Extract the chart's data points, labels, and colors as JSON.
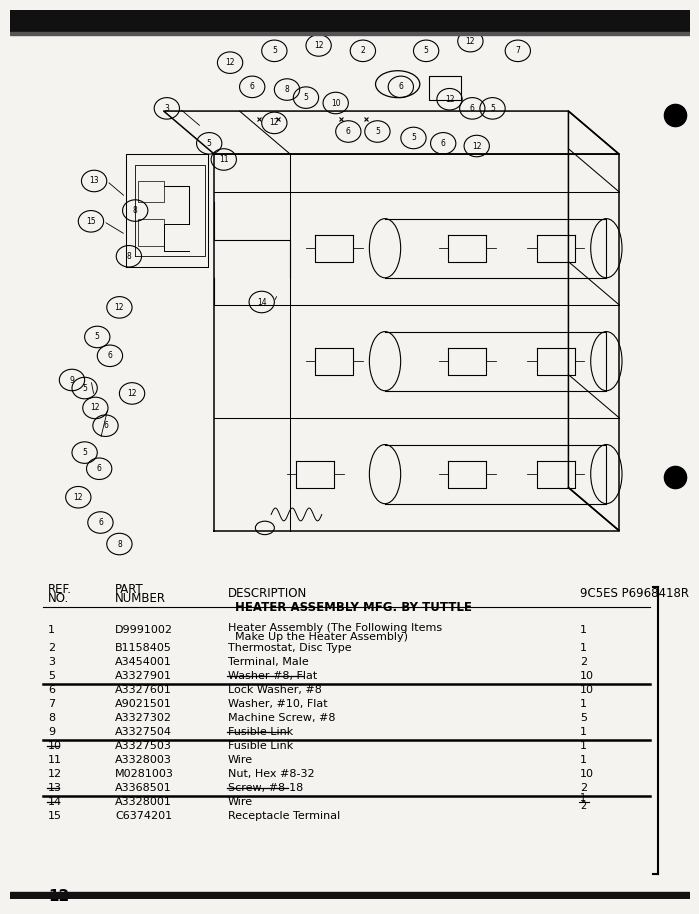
{
  "title": "HEATER ASSEMBLY MFG. BY TUTTLE",
  "model": "9C5ES P6968418R",
  "page_number": "12",
  "bg_color": "#f5f3ef",
  "rows": [
    {
      "ref": "1",
      "part": "D9991002",
      "desc1": "Heater Assembly (The Following Items",
      "desc2": "  Make Up the Heater Assembly)",
      "qty": "1",
      "underline": false,
      "ref_strike": false,
      "desc_strike": false
    },
    {
      "ref": "2",
      "part": "B1158405",
      "desc1": "Thermostat, Disc Type",
      "desc2": "",
      "qty": "1",
      "underline": false,
      "ref_strike": false,
      "desc_strike": false
    },
    {
      "ref": "3",
      "part": "A3454001",
      "desc1": "Terminal, Male",
      "desc2": "",
      "qty": "2",
      "underline": false,
      "ref_strike": false,
      "desc_strike": false
    },
    {
      "ref": "5",
      "part": "A3327901",
      "desc1": "Washer #8, Flat",
      "desc2": "",
      "qty": "10",
      "underline": true,
      "ref_strike": false,
      "desc_strike": true
    },
    {
      "ref": "6",
      "part": "A3327601",
      "desc1": "Lock Washer, #8",
      "desc2": "",
      "qty": "10",
      "underline": false,
      "ref_strike": false,
      "desc_strike": false
    },
    {
      "ref": "7",
      "part": "A9021501",
      "desc1": "Washer, #10, Flat",
      "desc2": "",
      "qty": "1",
      "underline": false,
      "ref_strike": false,
      "desc_strike": false
    },
    {
      "ref": "8",
      "part": "A3327302",
      "desc1": "Machine Screw, #8",
      "desc2": "",
      "qty": "5",
      "underline": false,
      "ref_strike": false,
      "desc_strike": false
    },
    {
      "ref": "9",
      "part": "A3327504",
      "desc1": "Fusible Link",
      "desc2": "",
      "qty": "1",
      "underline": true,
      "ref_strike": false,
      "desc_strike": true
    },
    {
      "ref": "10",
      "part": "A3327503",
      "desc1": "Fusible Link",
      "desc2": "",
      "qty": "1",
      "underline": false,
      "ref_strike": true,
      "desc_strike": false
    },
    {
      "ref": "11",
      "part": "A3328003",
      "desc1": "Wire",
      "desc2": "",
      "qty": "1",
      "underline": false,
      "ref_strike": false,
      "desc_strike": false
    },
    {
      "ref": "12",
      "part": "M0281003",
      "desc1": "Nut, Hex #8-32",
      "desc2": "",
      "qty": "10",
      "underline": false,
      "ref_strike": false,
      "desc_strike": false
    },
    {
      "ref": "13",
      "part": "A3368501",
      "desc1": "Screw, #8-18",
      "desc2": "",
      "qty": "2",
      "underline": true,
      "ref_strike": true,
      "desc_strike": true
    },
    {
      "ref": "14",
      "part": "A3328001",
      "desc1": "Wire",
      "desc2": "",
      "qty": "1/2",
      "underline": false,
      "ref_strike": true,
      "desc_strike": false
    },
    {
      "ref": "15",
      "part": "C6374201",
      "desc1": "Receptacle Terminal",
      "desc2": "",
      "qty": "",
      "underline": false,
      "ref_strike": false,
      "desc_strike": false
    }
  ],
  "top_bar_color": "#111111",
  "font_size_body": 8.0,
  "font_size_header": 8.5,
  "labeled_circles": [
    [
      2.05,
      8.65,
      "3"
    ],
    [
      0.9,
      7.3,
      "13"
    ],
    [
      0.85,
      6.55,
      "15"
    ],
    [
      1.55,
      6.75,
      "8"
    ],
    [
      1.45,
      5.9,
      "8"
    ],
    [
      1.3,
      4.95,
      "12"
    ],
    [
      0.95,
      4.4,
      "5"
    ],
    [
      1.15,
      4.05,
      "6"
    ],
    [
      0.75,
      3.45,
      "5"
    ],
    [
      0.92,
      3.08,
      "12"
    ],
    [
      1.08,
      2.75,
      "6"
    ],
    [
      0.75,
      2.25,
      "5"
    ],
    [
      0.98,
      1.95,
      "6"
    ],
    [
      0.65,
      1.42,
      "12"
    ],
    [
      1.0,
      0.95,
      "6"
    ],
    [
      1.3,
      0.55,
      "8"
    ],
    [
      0.55,
      3.6,
      "9"
    ],
    [
      1.5,
      3.35,
      "12"
    ],
    [
      3.55,
      5.05,
      "14"
    ],
    [
      3.05,
      9.5,
      "12"
    ],
    [
      3.75,
      9.72,
      "5"
    ],
    [
      4.45,
      9.82,
      "12"
    ],
    [
      5.15,
      9.72,
      "2"
    ],
    [
      6.15,
      9.72,
      "5"
    ],
    [
      6.85,
      9.9,
      "12"
    ],
    [
      7.6,
      9.72,
      "7"
    ],
    [
      3.4,
      9.05,
      "6"
    ],
    [
      3.95,
      9.0,
      "8"
    ],
    [
      4.25,
      8.85,
      "5"
    ],
    [
      4.72,
      8.75,
      "10"
    ],
    [
      5.75,
      9.05,
      "6"
    ],
    [
      6.52,
      8.82,
      "12"
    ],
    [
      6.88,
      8.65,
      "6"
    ],
    [
      7.2,
      8.65,
      "5"
    ],
    [
      3.75,
      8.38,
      "12"
    ],
    [
      4.92,
      8.22,
      "6"
    ],
    [
      5.38,
      8.22,
      "5"
    ],
    [
      5.95,
      8.1,
      "5"
    ],
    [
      6.42,
      8.0,
      "6"
    ],
    [
      6.95,
      7.95,
      "12"
    ],
    [
      2.72,
      8.0,
      "5"
    ],
    [
      2.95,
      7.7,
      "11"
    ]
  ]
}
